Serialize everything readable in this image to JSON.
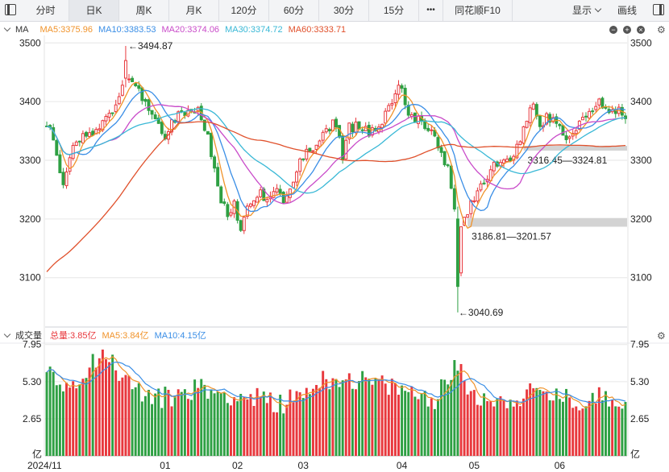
{
  "toolbar": {
    "tabs": [
      "分时",
      "日K",
      "周K",
      "月K",
      "120分",
      "60分",
      "30分",
      "15分",
      "•••",
      "同花顺F10"
    ],
    "active_tab": "日K",
    "display_label": "显示",
    "draw_label": "画线"
  },
  "main_legend": {
    "indicator": "MA",
    "items": [
      {
        "text": "MA5:3375.96",
        "color": "#f0932b"
      },
      {
        "text": "MA10:3383.53",
        "color": "#3a8ee6"
      },
      {
        "text": "MA20:3374.06",
        "color": "#c94bc9"
      },
      {
        "text": "MA30:3374.72",
        "color": "#39b8d6"
      },
      {
        "text": "MA60:3333.71",
        "color": "#e0502b"
      }
    ]
  },
  "volume_legend": {
    "indicator": "成交量",
    "items": [
      {
        "text": "总量:3.85亿",
        "color": "#e8383d"
      },
      {
        "text": "MA5:3.84亿",
        "color": "#f0932b"
      },
      {
        "text": "MA10:4.15亿",
        "color": "#3a8ee6"
      }
    ]
  },
  "colors": {
    "up": "#e8383d",
    "down": "#2ea043",
    "grid": "#e6e6e6",
    "zone": "#d3d3d3"
  },
  "chart_data": [
    {
      "type": "candlestick",
      "price_axis": {
        "ylim": [
          3020,
          3510
        ],
        "ticks": [
          3100,
          3200,
          3300,
          3400,
          3500
        ]
      },
      "x_labels": [
        "2024/11",
        "01",
        "02",
        "03",
        "04",
        "05",
        "06"
      ],
      "annotations": [
        {
          "text": "3494.87",
          "value": 3494.87,
          "kind": "high"
        },
        {
          "text": "3040.69",
          "value": 3040.69,
          "kind": "low"
        }
      ],
      "gap_zones": [
        {
          "text": "3316.45—3324.81",
          "low": 3316.45,
          "high": 3324.81
        },
        {
          "text": "3186.81—3201.57",
          "low": 3186.81,
          "high": 3201.57
        }
      ],
      "price_path": [
        [
          0,
          3360
        ],
        [
          2,
          3340
        ],
        [
          3,
          3300
        ],
        [
          5,
          3265
        ],
        [
          6,
          3285
        ],
        [
          8,
          3320
        ],
        [
          12,
          3345
        ],
        [
          17,
          3360
        ],
        [
          20,
          3385
        ],
        [
          24,
          3440
        ],
        [
          28,
          3420
        ],
        [
          31,
          3380
        ],
        [
          33,
          3365
        ],
        [
          36,
          3345
        ],
        [
          39,
          3370
        ],
        [
          42,
          3385
        ],
        [
          46,
          3390
        ],
        [
          49,
          3340
        ],
        [
          52,
          3250
        ],
        [
          55,
          3205
        ],
        [
          57,
          3225
        ],
        [
          59,
          3180
        ],
        [
          60,
          3205
        ],
        [
          62,
          3225
        ],
        [
          64,
          3245
        ],
        [
          67,
          3235
        ],
        [
          70,
          3250
        ],
        [
          72,
          3230
        ],
        [
          74,
          3255
        ],
        [
          76,
          3285
        ],
        [
          79,
          3310
        ],
        [
          82,
          3330
        ],
        [
          85,
          3350
        ],
        [
          88,
          3365
        ],
        [
          90,
          3300
        ],
        [
          92,
          3355
        ],
        [
          95,
          3360
        ],
        [
          98,
          3350
        ],
        [
          101,
          3360
        ],
        [
          104,
          3390
        ],
        [
          106,
          3420
        ],
        [
          108,
          3425
        ],
        [
          110,
          3380
        ],
        [
          112,
          3370
        ],
        [
          114,
          3365
        ],
        [
          116,
          3355
        ],
        [
          119,
          3330
        ],
        [
          120,
          3305
        ],
        [
          122,
          3285
        ],
        [
          124,
          3210
        ],
        [
          125,
          3110
        ],
        [
          126,
          3180
        ],
        [
          128,
          3210
        ],
        [
          131,
          3250
        ],
        [
          133,
          3265
        ],
        [
          136,
          3290
        ],
        [
          140,
          3300
        ],
        [
          142,
          3310
        ],
        [
          144,
          3340
        ],
        [
          146,
          3375
        ],
        [
          148,
          3390
        ],
        [
          150,
          3360
        ],
        [
          152,
          3375
        ],
        [
          155,
          3365
        ],
        [
          157,
          3340
        ],
        [
          159,
          3345
        ],
        [
          161,
          3350
        ],
        [
          163,
          3370
        ],
        [
          166,
          3390
        ],
        [
          168,
          3400
        ],
        [
          170,
          3380
        ],
        [
          172,
          3390
        ],
        [
          174,
          3385
        ],
        [
          176,
          3376
        ]
      ]
    },
    {
      "type": "bar",
      "name": "成交量",
      "unit": "亿",
      "ylim": [
        0,
        8.05
      ],
      "ticks": [
        2.65,
        5.3,
        7.95
      ],
      "volume_path": [
        [
          0,
          5.8
        ],
        [
          6,
          5.0
        ],
        [
          10,
          5.6
        ],
        [
          14,
          6.8
        ],
        [
          17,
          7.5
        ],
        [
          20,
          6.5
        ],
        [
          24,
          5.5
        ],
        [
          28,
          4.6
        ],
        [
          33,
          4.0
        ],
        [
          40,
          4.4
        ],
        [
          46,
          4.9
        ],
        [
          50,
          4.6
        ],
        [
          55,
          4.4
        ],
        [
          60,
          4.2
        ],
        [
          66,
          4.0
        ],
        [
          72,
          3.8
        ],
        [
          78,
          4.5
        ],
        [
          82,
          5.2
        ],
        [
          88,
          5.6
        ],
        [
          94,
          5.4
        ],
        [
          100,
          5.1
        ],
        [
          106,
          4.8
        ],
        [
          112,
          4.4
        ],
        [
          118,
          4.1
        ],
        [
          122,
          5.6
        ],
        [
          125,
          6.3
        ],
        [
          128,
          4.9
        ],
        [
          132,
          4.2
        ],
        [
          138,
          3.9
        ],
        [
          144,
          4.2
        ],
        [
          150,
          4.6
        ],
        [
          156,
          4.1
        ],
        [
          162,
          3.8
        ],
        [
          168,
          4.2
        ],
        [
          172,
          4.3
        ],
        [
          176,
          3.85
        ]
      ]
    }
  ]
}
